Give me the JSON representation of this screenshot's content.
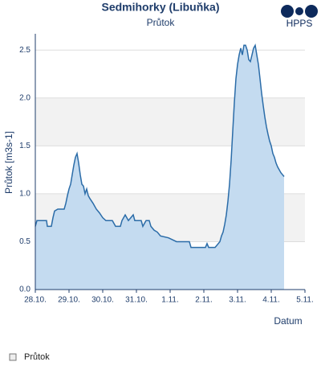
{
  "chart_data": {
    "type": "area",
    "title": "Sedmihorky (Libuňka)",
    "subtitle": "Průtok",
    "logo": "HPPS",
    "y_label": "Průtok [m3s-1]",
    "x_label": "Datum",
    "x": [
      0,
      0.048,
      0.333,
      0.357,
      0.476,
      0.524,
      0.571,
      0.667,
      0.857,
      0.905,
      0.952,
      1,
      1.048,
      1.095,
      1.143,
      1.19,
      1.238,
      1.286,
      1.333,
      1.381,
      1.429,
      1.476,
      1.524,
      1.571,
      1.619,
      1.714,
      1.81,
      1.905,
      2,
      2.095,
      2.286,
      2.381,
      2.524,
      2.571,
      2.667,
      2.762,
      2.905,
      2.952,
      3.143,
      3.19,
      3.286,
      3.381,
      3.429,
      3.524,
      3.619,
      3.714,
      3.952,
      4.19,
      4.571,
      4.619,
      5.048,
      5.095,
      5.143,
      5.333,
      5.381,
      5.476,
      5.524,
      5.571,
      5.619,
      5.667,
      5.714,
      5.762,
      5.81,
      5.857,
      5.905,
      5.952,
      6,
      6.048,
      6.095,
      6.143,
      6.19,
      6.238,
      6.286,
      6.333,
      6.381,
      6.429,
      6.476,
      6.524,
      6.571,
      6.619,
      6.667,
      6.714,
      6.762,
      6.81,
      6.857,
      6.905,
      6.952,
      7,
      7.048,
      7.095,
      7.143,
      7.19,
      7.238,
      7.286,
      7.333,
      7.381
    ],
    "series": [
      {
        "name": "Průtok",
        "color": "#2b6ca8",
        "fill": "#c4dbf0",
        "values": [
          0.66,
          0.72,
          0.72,
          0.66,
          0.66,
          0.75,
          0.82,
          0.84,
          0.84,
          0.9,
          0.98,
          1.05,
          1.1,
          1.2,
          1.3,
          1.38,
          1.42,
          1.32,
          1.2,
          1.1,
          1.08,
          1.0,
          1.05,
          0.98,
          0.95,
          0.9,
          0.84,
          0.8,
          0.75,
          0.72,
          0.72,
          0.66,
          0.66,
          0.72,
          0.78,
          0.72,
          0.78,
          0.72,
          0.72,
          0.66,
          0.72,
          0.72,
          0.66,
          0.62,
          0.6,
          0.56,
          0.54,
          0.5,
          0.5,
          0.44,
          0.44,
          0.48,
          0.44,
          0.44,
          0.46,
          0.5,
          0.56,
          0.6,
          0.68,
          0.78,
          0.92,
          1.1,
          1.35,
          1.65,
          1.95,
          2.2,
          2.35,
          2.45,
          2.52,
          2.45,
          2.55,
          2.55,
          2.5,
          2.4,
          2.38,
          2.45,
          2.52,
          2.55,
          2.45,
          2.35,
          2.2,
          2.05,
          1.92,
          1.8,
          1.7,
          1.62,
          1.55,
          1.5,
          1.42,
          1.38,
          1.32,
          1.28,
          1.25,
          1.22,
          1.2,
          1.18
        ]
      }
    ],
    "xlim": [
      0,
      8
    ],
    "xticks": [
      {
        "value": 0,
        "label": "28.10."
      },
      {
        "value": 1,
        "label": "29.10."
      },
      {
        "value": 2,
        "label": "30.10."
      },
      {
        "value": 3,
        "label": "31.10."
      },
      {
        "value": 4,
        "label": "1.11."
      },
      {
        "value": 5,
        "label": "2.11."
      },
      {
        "value": 6,
        "label": "3.11."
      },
      {
        "value": 7,
        "label": "4.11."
      },
      {
        "value": 8,
        "label": "5.11."
      }
    ],
    "ylim": [
      0,
      2.67
    ],
    "yticks": [
      {
        "value": 0,
        "label": "0.0"
      },
      0.5,
      {
        "value": 1,
        "label": "1.0"
      },
      1.5,
      {
        "value": 2,
        "label": "2.0"
      },
      2.5
    ],
    "grid": true,
    "alternate_bands": true,
    "legend": "bottom-left"
  }
}
